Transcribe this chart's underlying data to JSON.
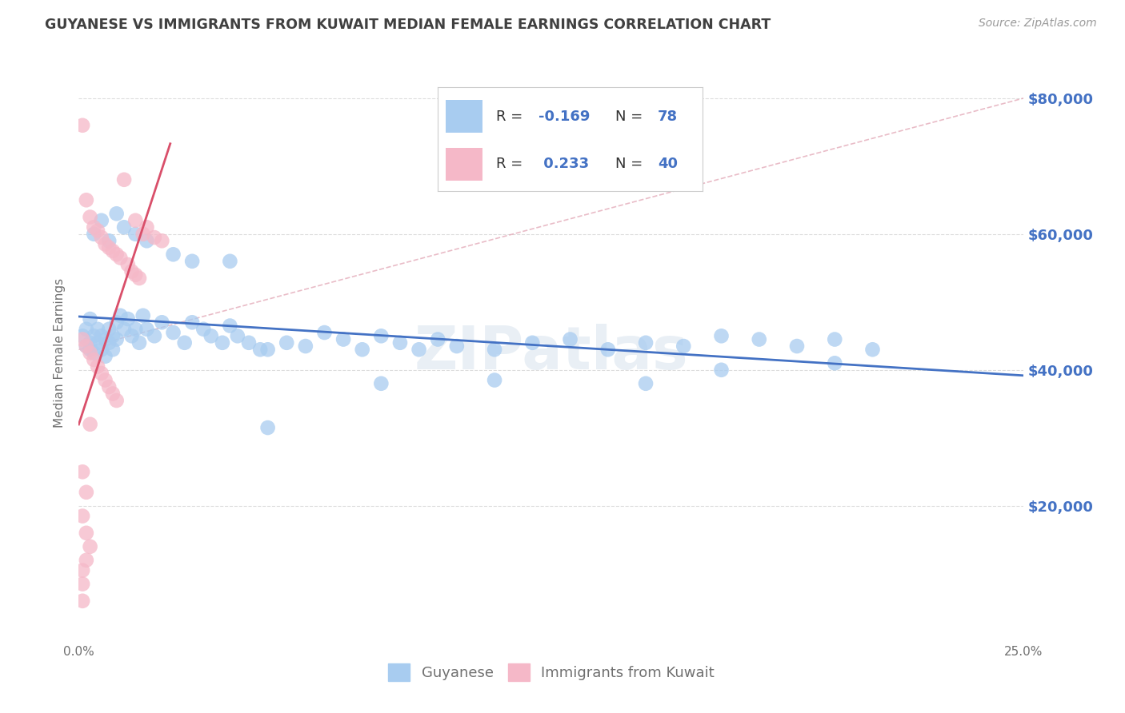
{
  "title": "GUYANESE VS IMMIGRANTS FROM KUWAIT MEDIAN FEMALE EARNINGS CORRELATION CHART",
  "source": "Source: ZipAtlas.com",
  "ylabel": "Median Female Earnings",
  "x_min": 0.0,
  "x_max": 0.25,
  "y_min": 0,
  "y_max": 85000,
  "x_ticks": [
    0.0,
    0.05,
    0.1,
    0.15,
    0.2,
    0.25
  ],
  "x_tick_labels": [
    "0.0%",
    "",
    "",
    "",
    "",
    "25.0%"
  ],
  "y_ticks": [
    20000,
    40000,
    60000,
    80000
  ],
  "y_tick_labels": [
    "$20,000",
    "$40,000",
    "$60,000",
    "$80,000"
  ],
  "watermark": "ZIPatlas",
  "color_blue": "#A8CCF0",
  "color_pink": "#F5B8C8",
  "line_blue": "#4472C4",
  "line_pink": "#D94F6A",
  "line_dashed_color": "#E0A0B0",
  "background_color": "#FFFFFF",
  "grid_color": "#DDDDDD",
  "title_color": "#404040",
  "axis_label_color": "#707070",
  "tick_color_right": "#4472C4",
  "blue_scatter": [
    [
      0.001,
      45000
    ],
    [
      0.002,
      43500
    ],
    [
      0.002,
      46000
    ],
    [
      0.003,
      44000
    ],
    [
      0.003,
      47500
    ],
    [
      0.003,
      43000
    ],
    [
      0.004,
      45000
    ],
    [
      0.004,
      42500
    ],
    [
      0.005,
      46000
    ],
    [
      0.005,
      44000
    ],
    [
      0.006,
      45000
    ],
    [
      0.006,
      43000
    ],
    [
      0.007,
      44500
    ],
    [
      0.007,
      42000
    ],
    [
      0.008,
      46000
    ],
    [
      0.008,
      44000
    ],
    [
      0.009,
      45000
    ],
    [
      0.009,
      43000
    ],
    [
      0.01,
      47000
    ],
    [
      0.01,
      44500
    ],
    [
      0.011,
      48000
    ],
    [
      0.012,
      46000
    ],
    [
      0.013,
      47500
    ],
    [
      0.014,
      45000
    ],
    [
      0.015,
      46000
    ],
    [
      0.016,
      44000
    ],
    [
      0.017,
      48000
    ],
    [
      0.018,
      46000
    ],
    [
      0.02,
      45000
    ],
    [
      0.022,
      47000
    ],
    [
      0.025,
      45500
    ],
    [
      0.028,
      44000
    ],
    [
      0.03,
      47000
    ],
    [
      0.033,
      46000
    ],
    [
      0.035,
      45000
    ],
    [
      0.038,
      44000
    ],
    [
      0.04,
      46500
    ],
    [
      0.042,
      45000
    ],
    [
      0.045,
      44000
    ],
    [
      0.048,
      43000
    ],
    [
      0.05,
      43000
    ],
    [
      0.055,
      44000
    ],
    [
      0.06,
      43500
    ],
    [
      0.065,
      45500
    ],
    [
      0.07,
      44500
    ],
    [
      0.075,
      43000
    ],
    [
      0.08,
      45000
    ],
    [
      0.085,
      44000
    ],
    [
      0.09,
      43000
    ],
    [
      0.095,
      44500
    ],
    [
      0.1,
      43500
    ],
    [
      0.11,
      43000
    ],
    [
      0.12,
      44000
    ],
    [
      0.13,
      44500
    ],
    [
      0.14,
      43000
    ],
    [
      0.15,
      44000
    ],
    [
      0.16,
      43500
    ],
    [
      0.17,
      45000
    ],
    [
      0.18,
      44500
    ],
    [
      0.19,
      43500
    ],
    [
      0.2,
      44500
    ],
    [
      0.21,
      43000
    ],
    [
      0.004,
      60000
    ],
    [
      0.006,
      62000
    ],
    [
      0.008,
      59000
    ],
    [
      0.01,
      63000
    ],
    [
      0.012,
      61000
    ],
    [
      0.015,
      60000
    ],
    [
      0.018,
      59000
    ],
    [
      0.025,
      57000
    ],
    [
      0.03,
      56000
    ],
    [
      0.04,
      56000
    ],
    [
      0.05,
      31500
    ],
    [
      0.08,
      38000
    ],
    [
      0.11,
      38500
    ],
    [
      0.15,
      38000
    ],
    [
      0.17,
      40000
    ],
    [
      0.2,
      41000
    ]
  ],
  "pink_scatter": [
    [
      0.001,
      76000
    ],
    [
      0.012,
      68000
    ],
    [
      0.015,
      62000
    ],
    [
      0.017,
      60000
    ],
    [
      0.018,
      61000
    ],
    [
      0.02,
      59500
    ],
    [
      0.022,
      59000
    ],
    [
      0.002,
      65000
    ],
    [
      0.003,
      62500
    ],
    [
      0.004,
      61000
    ],
    [
      0.005,
      60500
    ],
    [
      0.006,
      59500
    ],
    [
      0.007,
      58500
    ],
    [
      0.008,
      58000
    ],
    [
      0.009,
      57500
    ],
    [
      0.01,
      57000
    ],
    [
      0.011,
      56500
    ],
    [
      0.013,
      55500
    ],
    [
      0.014,
      54500
    ],
    [
      0.015,
      54000
    ],
    [
      0.016,
      53500
    ],
    [
      0.001,
      44500
    ],
    [
      0.002,
      43500
    ],
    [
      0.003,
      42500
    ],
    [
      0.004,
      41500
    ],
    [
      0.005,
      40500
    ],
    [
      0.006,
      39500
    ],
    [
      0.007,
      38500
    ],
    [
      0.008,
      37500
    ],
    [
      0.009,
      36500
    ],
    [
      0.01,
      35500
    ],
    [
      0.003,
      32000
    ],
    [
      0.002,
      22000
    ],
    [
      0.001,
      18500
    ],
    [
      0.003,
      14000
    ],
    [
      0.001,
      10500
    ],
    [
      0.002,
      12000
    ],
    [
      0.001,
      8500
    ],
    [
      0.001,
      25000
    ],
    [
      0.002,
      16000
    ],
    [
      0.001,
      6000
    ]
  ]
}
